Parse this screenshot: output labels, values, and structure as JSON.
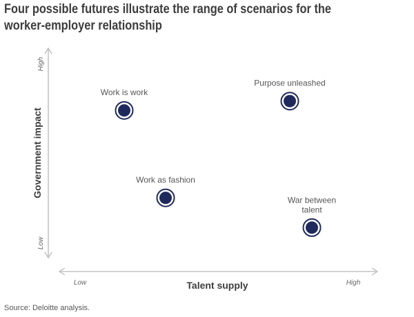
{
  "title_lines": [
    "Four possible futures illustrate the range of scenarios for the",
    "worker-employer relationship"
  ],
  "source": "Source: Deloitte analysis.",
  "colors": {
    "marker_fill": "#1f2a5c",
    "marker_ring": "#1f2a5c",
    "axis": "#b8b8b8",
    "text": "#3d3d3d",
    "label": "#555555"
  },
  "chart_data": {
    "type": "scatter",
    "title": "Four possible futures illustrate the range of scenarios for the worker-employer relationship",
    "xlabel": "Talent supply",
    "ylabel": "Government impact",
    "x_tick_labels": {
      "low": "Low",
      "high": "High"
    },
    "y_tick_labels": {
      "low": "Low",
      "high": "High"
    },
    "xlim": [
      0,
      100
    ],
    "ylim": [
      0,
      100
    ],
    "grid": false,
    "points": [
      {
        "label": [
          "Work is work"
        ],
        "x": 20,
        "y": 74
      },
      {
        "label": [
          "Purpose unleashed"
        ],
        "x": 80,
        "y": 79
      },
      {
        "label": [
          "Work as fashion"
        ],
        "x": 35,
        "y": 27
      },
      {
        "label": [
          "War between",
          "talent"
        ],
        "x": 88,
        "y": 11
      }
    ]
  }
}
